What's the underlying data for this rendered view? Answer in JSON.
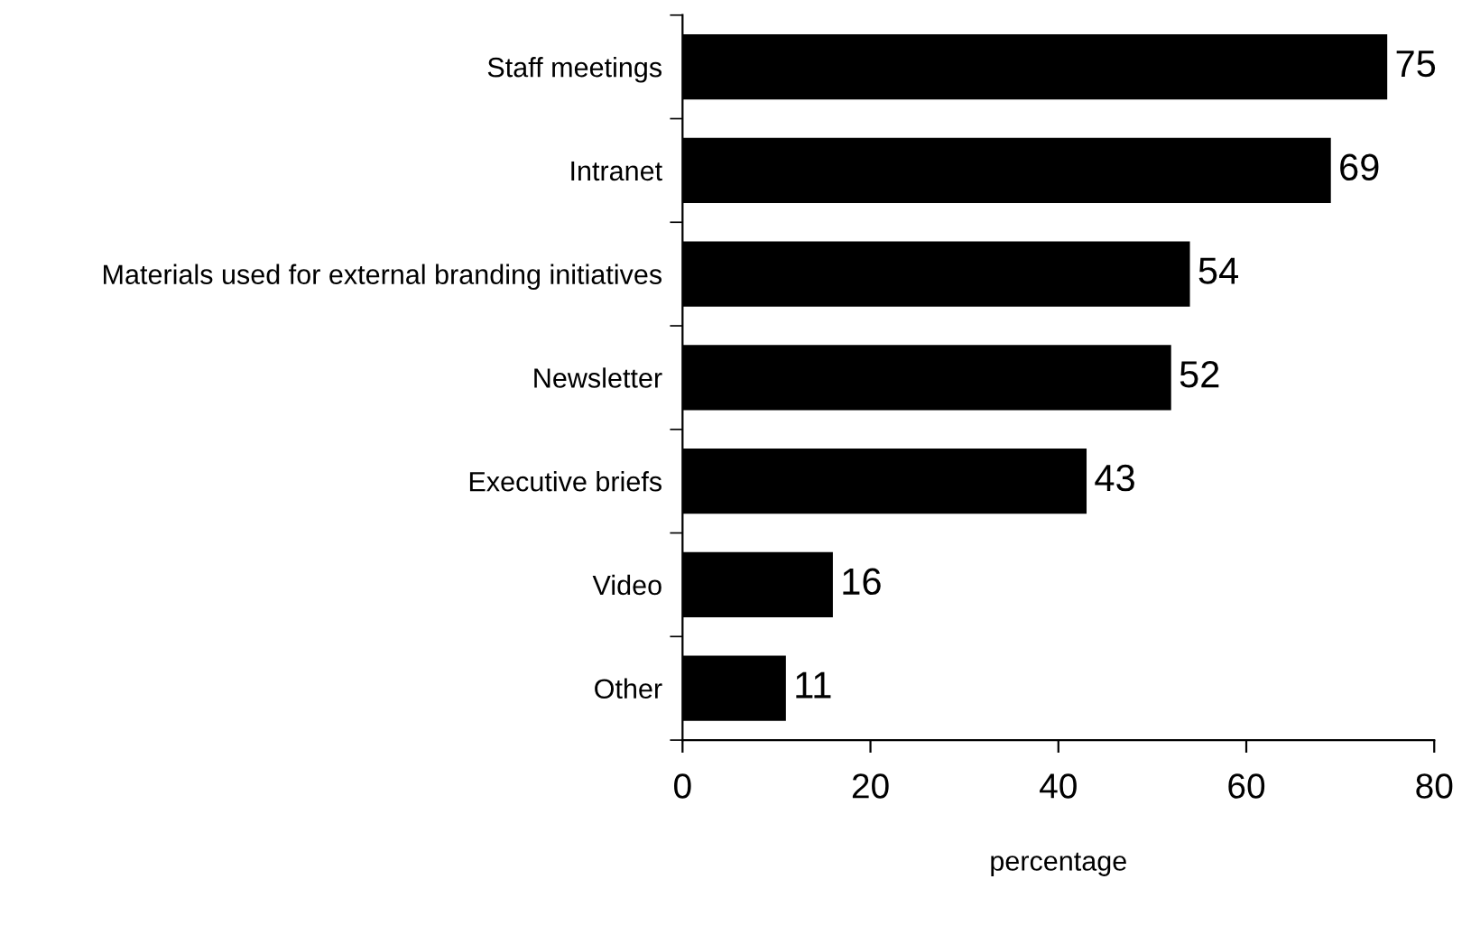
{
  "chart_data": {
    "type": "bar",
    "orientation": "horizontal",
    "xlabel": "percentage",
    "categories": [
      "Staff meetings",
      "Intranet",
      "Materials used for external branding initiatives",
      "Newsletter",
      "Executive briefs",
      "Video",
      "Other"
    ],
    "values": [
      75,
      69,
      54,
      52,
      43,
      16,
      11
    ],
    "color": "#000000",
    "xlim": [
      0,
      80
    ],
    "xticks": [
      0,
      20,
      40,
      60,
      80
    ],
    "grid": false,
    "data_labels": true
  }
}
